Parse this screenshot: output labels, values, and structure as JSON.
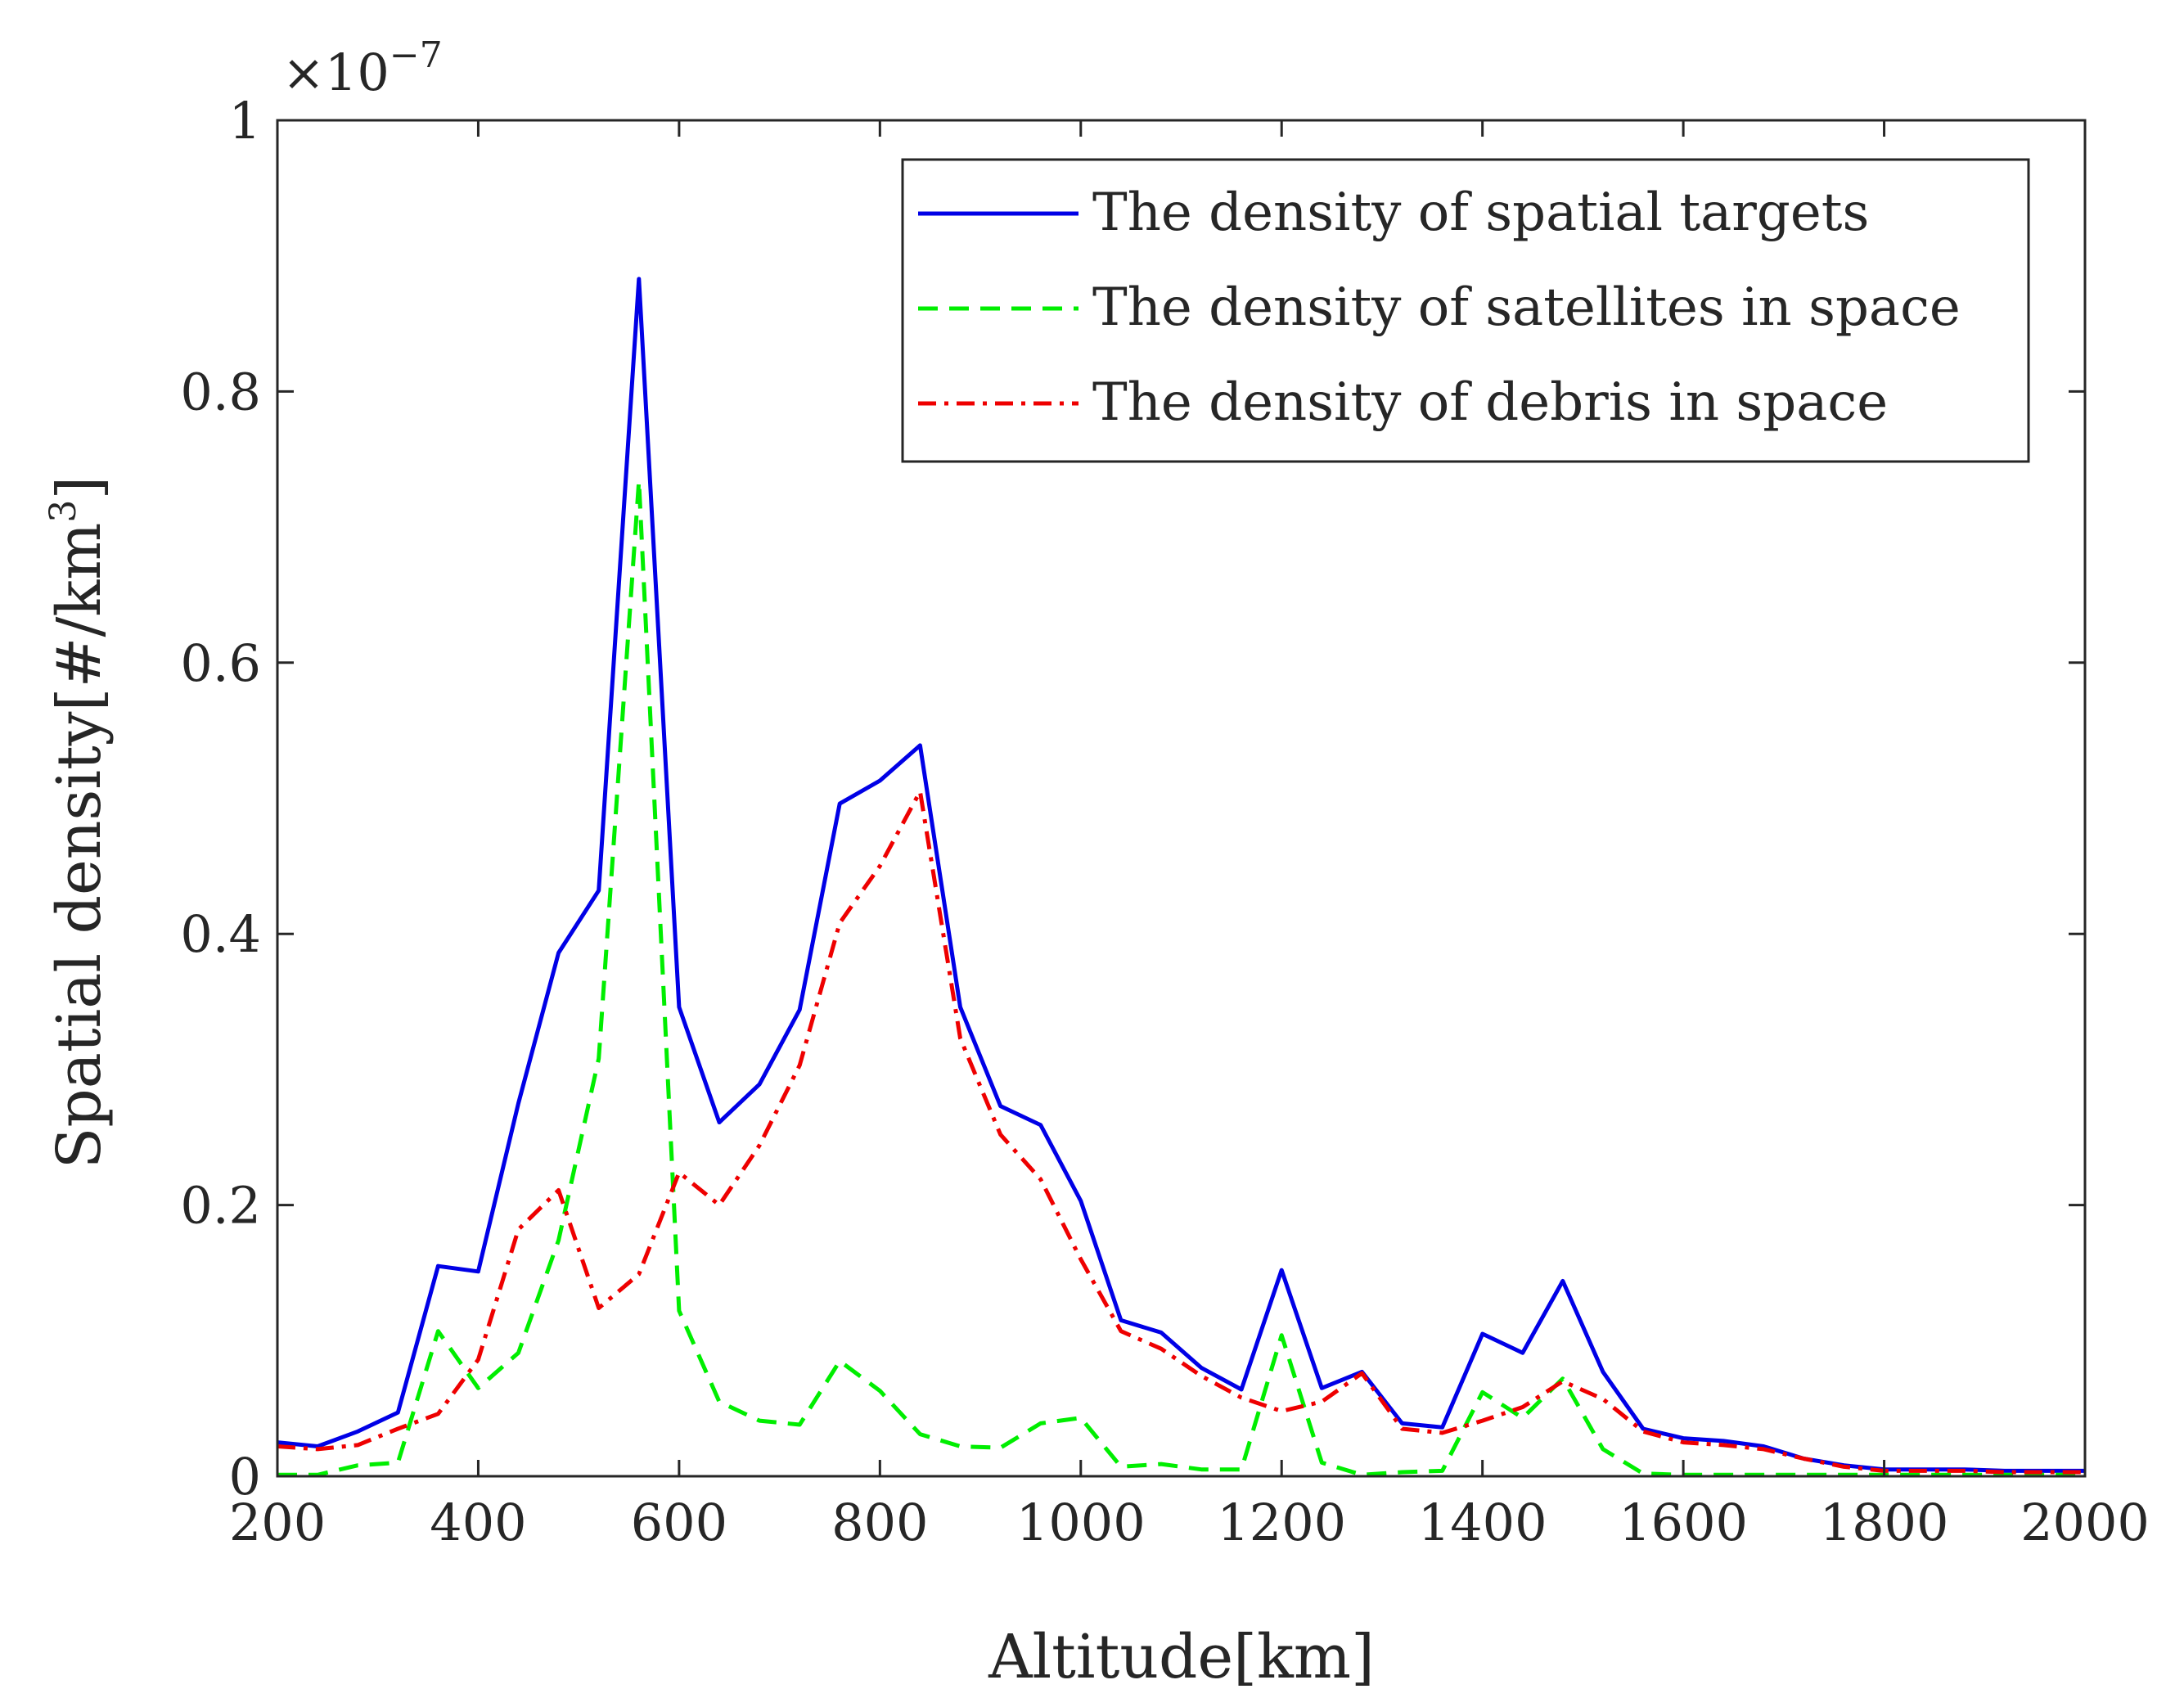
{
  "chart_data": {
    "type": "line",
    "title": "",
    "xlabel": "Altitude[km]",
    "ylabel_main": "Spatial density[#/km",
    "ylabel_sup": "3",
    "ylabel_close": "]",
    "y_multiplier_base": "×10",
    "y_multiplier_exp": "−7",
    "xlim": [
      200,
      2000
    ],
    "ylim": [
      0,
      1
    ],
    "xticks": [
      200,
      400,
      600,
      800,
      1000,
      1200,
      1400,
      1600,
      1800,
      2000
    ],
    "xtick_labels": [
      "200",
      "400",
      "600",
      "800",
      "1000",
      "1200",
      "1400",
      "1600",
      "1800",
      "2000"
    ],
    "yticks": [
      0,
      0.2,
      0.4,
      0.6,
      0.8,
      1
    ],
    "ytick_labels": [
      "0",
      "0.2",
      "0.4",
      "0.6",
      "0.8",
      "1"
    ],
    "legend_position": "top-right",
    "grid": false,
    "x": [
      200,
      240,
      280,
      320,
      360,
      400,
      440,
      480,
      520,
      560,
      600,
      640,
      680,
      720,
      760,
      800,
      840,
      880,
      920,
      960,
      1000,
      1040,
      1080,
      1120,
      1160,
      1200,
      1240,
      1280,
      1320,
      1360,
      1400,
      1440,
      1480,
      1520,
      1560,
      1600,
      1640,
      1680,
      1720,
      1760,
      1800,
      1840,
      1880,
      1920,
      1960,
      2000
    ],
    "series": [
      {
        "name": "The density of spatial targets",
        "color": "#0000e6",
        "dash": "solid",
        "values": [
          0.025,
          0.022,
          0.033,
          0.047,
          0.155,
          0.151,
          0.275,
          0.386,
          0.432,
          0.883,
          0.346,
          0.261,
          0.289,
          0.344,
          0.496,
          0.513,
          0.539,
          0.346,
          0.273,
          0.259,
          0.203,
          0.115,
          0.106,
          0.08,
          0.064,
          0.152,
          0.065,
          0.077,
          0.039,
          0.036,
          0.105,
          0.091,
          0.144,
          0.077,
          0.035,
          0.028,
          0.026,
          0.022,
          0.013,
          0.008,
          0.005,
          0.005,
          0.005,
          0.004,
          0.004,
          0.004
        ]
      },
      {
        "name": "The density of satellites in space",
        "color": "#00ee00",
        "dash": "dashed",
        "values": [
          0.001,
          0.001,
          0.008,
          0.01,
          0.107,
          0.065,
          0.091,
          0.174,
          0.308,
          0.734,
          0.122,
          0.055,
          0.041,
          0.038,
          0.085,
          0.063,
          0.031,
          0.022,
          0.021,
          0.039,
          0.043,
          0.007,
          0.009,
          0.005,
          0.005,
          0.104,
          0.01,
          0.001,
          0.003,
          0.004,
          0.062,
          0.043,
          0.072,
          0.02,
          0.002,
          0.001,
          0.001,
          0.001,
          0.001,
          0.001,
          0.001,
          0.001,
          0.001,
          0.001,
          0.001,
          0.001
        ]
      },
      {
        "name": "The density of debris in space",
        "color": "#ee0000",
        "dash": "dashdot",
        "values": [
          0.022,
          0.02,
          0.023,
          0.035,
          0.046,
          0.086,
          0.182,
          0.211,
          0.124,
          0.149,
          0.224,
          0.2,
          0.244,
          0.303,
          0.408,
          0.45,
          0.505,
          0.323,
          0.252,
          0.219,
          0.16,
          0.107,
          0.094,
          0.074,
          0.058,
          0.048,
          0.055,
          0.076,
          0.035,
          0.032,
          0.041,
          0.051,
          0.07,
          0.057,
          0.033,
          0.025,
          0.023,
          0.02,
          0.013,
          0.007,
          0.004,
          0.004,
          0.004,
          0.003,
          0.003,
          0.003
        ]
      }
    ]
  }
}
